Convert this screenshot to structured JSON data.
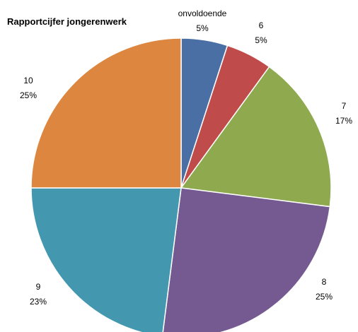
{
  "chart_data": {
    "type": "pie",
    "title": "Rapportcijfer jongerenwerk",
    "slices": [
      {
        "name": "onvoldoende",
        "value": 5,
        "label_value": "5%",
        "color": "#4A6FA5"
      },
      {
        "name": "6",
        "value": 5,
        "label_value": "5%",
        "color": "#BF4B4B"
      },
      {
        "name": "7",
        "value": 17,
        "label_value": "17%",
        "color": "#8FAA4E"
      },
      {
        "name": "8",
        "value": 25,
        "label_value": "25%",
        "color": "#745A91"
      },
      {
        "name": "9",
        "value": 23,
        "label_value": "23%",
        "color": "#4398B0"
      },
      {
        "name": "10",
        "value": 25,
        "label_value": "25%",
        "color": "#DD8640"
      }
    ],
    "start_angle": "12 o'clock",
    "direction": "clockwise",
    "legend": "none"
  }
}
